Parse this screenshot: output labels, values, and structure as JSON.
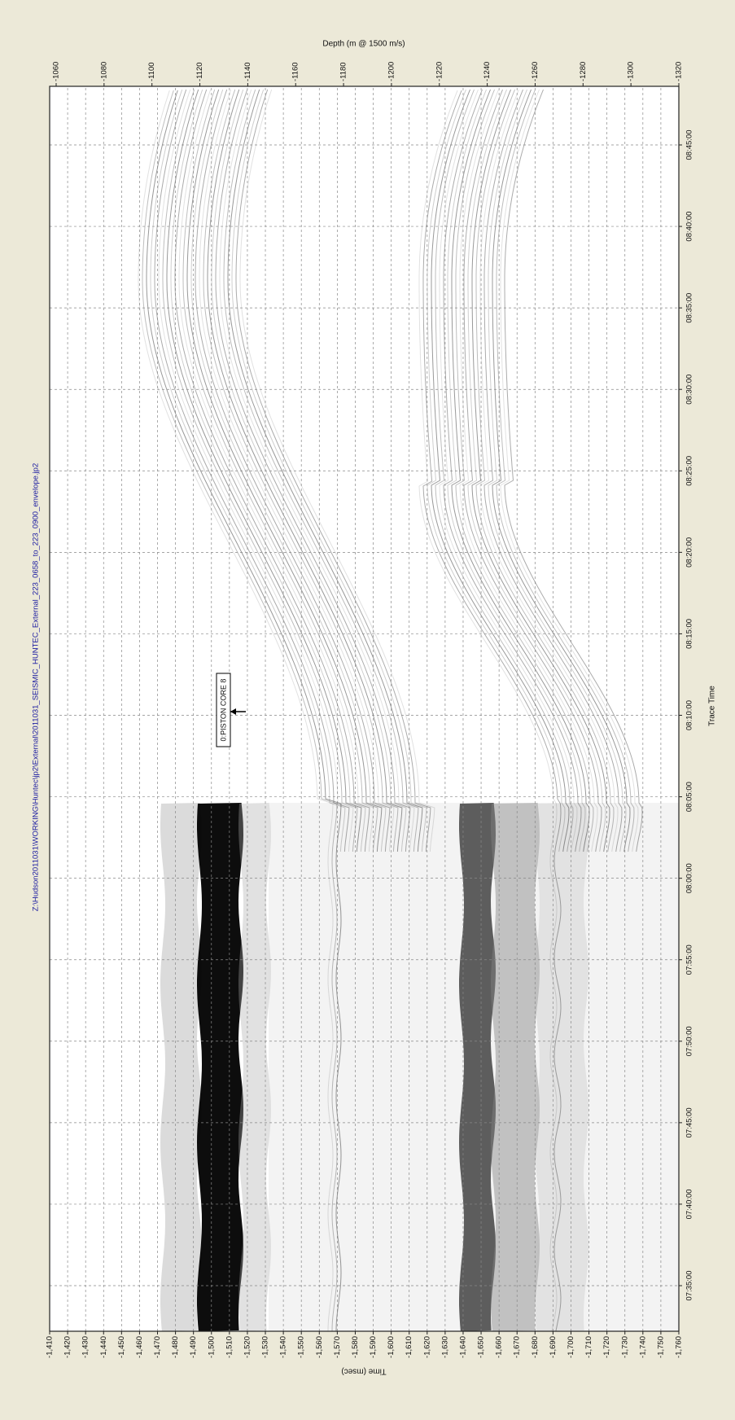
{
  "title": "Z:\\Hudson2011031\\WORKING\\Huntec\\jp2\\External\\2011031_SEISMIC_HUNTEC_External_223_0658_to_223_0900_envelope.jp2",
  "time_axis": {
    "label": "Time (msec)",
    "ticks": [
      "-1,410",
      "-1,420",
      "-1,430",
      "-1,440",
      "-1,450",
      "-1,460",
      "-1,470",
      "-1,480",
      "-1,490",
      "-1,500",
      "-1,510",
      "-1,520",
      "-1,530",
      "-1,540",
      "-1,550",
      "-1,560",
      "-1,570",
      "-1,580",
      "-1,590",
      "-1,600",
      "-1,610",
      "-1,620",
      "-1,630",
      "-1,640",
      "-1,650",
      "-1,660",
      "-1,670",
      "-1,680",
      "-1,690",
      "-1,700",
      "-1,710",
      "-1,720",
      "-1,730",
      "-1,740",
      "-1,750",
      "-1,760"
    ]
  },
  "depth_axis": {
    "label": "Depth (m @ 1500 m/s)",
    "ticks": [
      "-1060",
      "-1080",
      "-1100",
      "-1120",
      "-1140",
      "-1160",
      "-1180",
      "-1200",
      "-1220",
      "-1240",
      "-1260",
      "-1280",
      "-1300",
      "-1320"
    ]
  },
  "trace_axis": {
    "label": "Trace Time",
    "ticks": [
      "07:35:00",
      "07:40:00",
      "07:45:00",
      "07:50:00",
      "07:55:00",
      "08:00:00",
      "08:05:00",
      "08:10:00",
      "08:15:00",
      "08:20:00",
      "08:25:00",
      "08:30:00",
      "08:35:00",
      "08:40:00",
      "08:45:00"
    ]
  },
  "annotation": "0:PISTON CORE 8"
}
